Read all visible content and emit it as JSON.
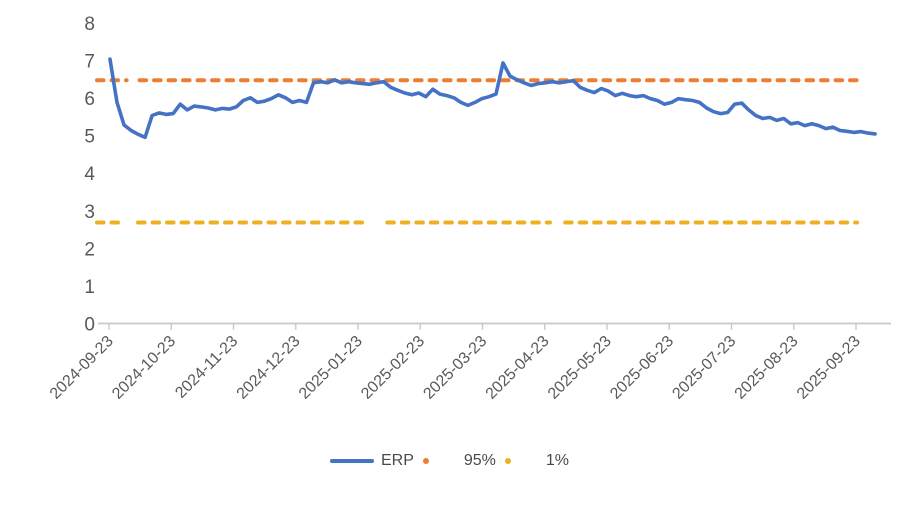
{
  "chart_data": {
    "type": "line",
    "title": "",
    "grid": "off",
    "legend_position": "bottom",
    "ylim": [
      0,
      8
    ],
    "y_ticks": [
      "0",
      "1",
      "2",
      "3",
      "4",
      "5",
      "6",
      "7",
      "8"
    ],
    "x_tick_labels": [
      "2024-09-23",
      "2024-10-23",
      "2024-11-23",
      "2024-12-23",
      "2025-01-23",
      "2025-02-23",
      "2025-03-23",
      "2025-04-23",
      "2025-05-23",
      "2025-06-23",
      "2025-07-23",
      "2025-08-23",
      "2025-09-23"
    ],
    "series": [
      {
        "name": "ERP",
        "type": "line",
        "style": "solid",
        "color": "#4472C4",
        "x_start": "2024-09-23",
        "values": [
          7.05,
          5.9,
          5.3,
          5.15,
          5.05,
          4.97,
          5.55,
          5.62,
          5.58,
          5.6,
          5.85,
          5.7,
          5.8,
          5.78,
          5.75,
          5.7,
          5.74,
          5.72,
          5.78,
          5.95,
          6.02,
          5.9,
          5.93,
          6.0,
          6.1,
          6.02,
          5.9,
          5.95,
          5.9,
          6.42,
          6.45,
          6.42,
          6.5,
          6.42,
          6.45,
          6.42,
          6.4,
          6.38,
          6.42,
          6.45,
          6.3,
          6.22,
          6.15,
          6.1,
          6.15,
          6.05,
          6.25,
          6.12,
          6.08,
          6.02,
          5.9,
          5.82,
          5.9,
          6.0,
          6.05,
          6.12,
          6.95,
          6.6,
          6.5,
          6.42,
          6.35,
          6.4,
          6.42,
          6.45,
          6.42,
          6.45,
          6.48,
          6.3,
          6.22,
          6.16,
          6.27,
          6.2,
          6.08,
          6.14,
          6.08,
          6.05,
          6.08,
          6.0,
          5.95,
          5.85,
          5.9,
          6.0,
          5.97,
          5.95,
          5.9,
          5.75,
          5.65,
          5.6,
          5.63,
          5.85,
          5.88,
          5.7,
          5.55,
          5.47,
          5.5,
          5.42,
          5.47,
          5.33,
          5.36,
          5.28,
          5.33,
          5.28,
          5.2,
          5.24,
          5.15,
          5.13,
          5.1,
          5.12,
          5.08,
          5.06
        ]
      },
      {
        "name": "95%",
        "type": "horizontal-threshold",
        "style": "dashed",
        "color": "#ED7D31",
        "value": 6.49,
        "segments": [
          [
            0.0,
            0.039
          ],
          [
            0.056,
            1.0
          ]
        ]
      },
      {
        "name": "1%",
        "type": "horizontal-threshold",
        "style": "dashed",
        "color": "#EDB120",
        "value": 2.7,
        "segments": [
          [
            0.0,
            0.037
          ],
          [
            0.054,
            0.353
          ],
          [
            0.382,
            0.596
          ],
          [
            0.616,
            1.0
          ]
        ]
      }
    ],
    "legend": [
      "ERP",
      "95%",
      "1%"
    ]
  },
  "axis": {
    "text_color": "#595959",
    "line_color": "#C9C9C9"
  }
}
